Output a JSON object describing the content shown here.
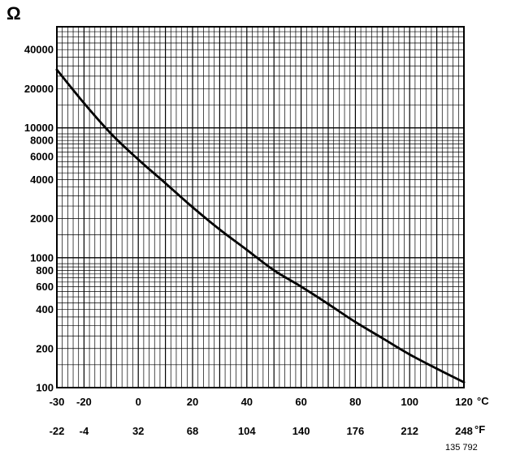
{
  "chart_data": {
    "type": "line",
    "y_unit": "Ω",
    "y_scale": "log",
    "ylim": [
      100,
      60000
    ],
    "xlim": [
      -30,
      120
    ],
    "x_unit_celsius": "°C",
    "x_unit_fahrenheit": "°F",
    "y_ticks": [
      {
        "value": 40000,
        "label": "40000"
      },
      {
        "value": 20000,
        "label": "20000"
      },
      {
        "value": 10000,
        "label": "10000"
      },
      {
        "value": 8000,
        "label": "8000"
      },
      {
        "value": 6000,
        "label": "6000"
      },
      {
        "value": 4000,
        "label": "4000"
      },
      {
        "value": 2000,
        "label": "2000"
      },
      {
        "value": 1000,
        "label": "1000"
      },
      {
        "value": 800,
        "label": "800"
      },
      {
        "value": 600,
        "label": "600"
      },
      {
        "value": 400,
        "label": "400"
      },
      {
        "value": 200,
        "label": "200"
      },
      {
        "value": 100,
        "label": "100"
      }
    ],
    "x_ticks_celsius": [
      {
        "value": -30,
        "label": "-30"
      },
      {
        "value": -20,
        "label": "-20"
      },
      {
        "value": 0,
        "label": "0"
      },
      {
        "value": 20,
        "label": "20"
      },
      {
        "value": 40,
        "label": "40"
      },
      {
        "value": 60,
        "label": "60"
      },
      {
        "value": 80,
        "label": "80"
      },
      {
        "value": 100,
        "label": "100"
      },
      {
        "value": 120,
        "label": "120"
      }
    ],
    "x_ticks_fahrenheit": [
      {
        "value": -30,
        "label": "-22"
      },
      {
        "value": -20,
        "label": "-4"
      },
      {
        "value": 0,
        "label": "32"
      },
      {
        "value": 20,
        "label": "68"
      },
      {
        "value": 40,
        "label": "104"
      },
      {
        "value": 60,
        "label": "140"
      },
      {
        "value": 80,
        "label": "176"
      },
      {
        "value": 100,
        "label": "212"
      },
      {
        "value": 120,
        "label": "248"
      }
    ],
    "series": [
      {
        "x": [
          -30,
          -20,
          -10,
          0,
          10,
          20,
          30,
          40,
          50,
          60,
          70,
          80,
          90,
          100,
          110,
          120
        ],
        "y": [
          28000,
          15500,
          9000,
          5700,
          3750,
          2450,
          1650,
          1150,
          800,
          600,
          440,
          320,
          240,
          180,
          140,
          110
        ]
      }
    ],
    "grid": true,
    "figure_number": "135 792",
    "colors": {
      "line": "#000000",
      "grid": "#000000",
      "background": "#ffffff"
    }
  }
}
